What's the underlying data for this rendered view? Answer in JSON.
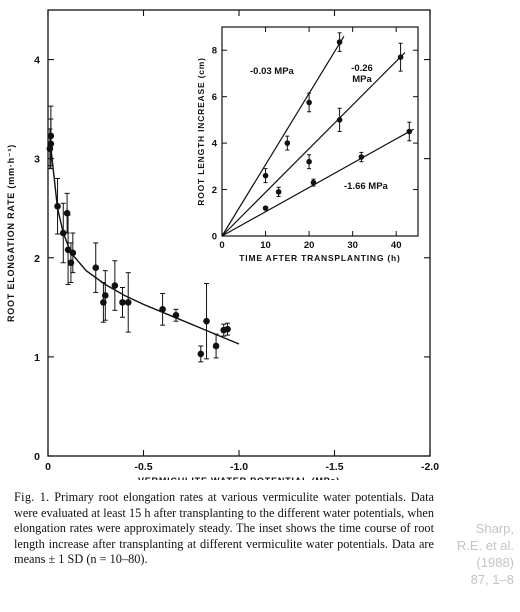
{
  "chart_data": [
    {
      "type": "scatter",
      "title": "",
      "xlabel": "VERMICULITE WATER POTENTIAL (MPa)",
      "ylabel": "ROOT ELONGATION RATE (mm·h⁻¹)",
      "xlim": [
        0,
        -2.0
      ],
      "ylim": [
        0,
        4.5
      ],
      "xticks": [
        0,
        -0.5,
        -1.0,
        -1.5,
        -2.0
      ],
      "xtick_labels": [
        "0",
        "-0.5",
        "-1.0",
        "-1.5",
        "-2.0"
      ],
      "yticks": [
        0,
        1,
        2,
        3,
        4
      ],
      "ytick_labels": [
        "0",
        "1",
        "2",
        "3",
        "4"
      ],
      "grid": false,
      "points": [
        {
          "x": -0.01,
          "y": 3.1,
          "err": 0.2
        },
        {
          "x": -0.015,
          "y": 3.23,
          "err": 0.3
        },
        {
          "x": -0.015,
          "y": 3.15,
          "err": 0.25
        },
        {
          "x": -0.05,
          "y": 2.52,
          "err": 0.28
        },
        {
          "x": -0.08,
          "y": 2.25,
          "err": 0.3
        },
        {
          "x": -0.1,
          "y": 2.45,
          "err": 0.2
        },
        {
          "x": -0.105,
          "y": 2.08,
          "err": 0.35
        },
        {
          "x": -0.12,
          "y": 1.95,
          "err": 0.2
        },
        {
          "x": -0.13,
          "y": 2.05,
          "err": 0.2
        },
        {
          "x": -0.25,
          "y": 1.9,
          "err": 0.25
        },
        {
          "x": -0.29,
          "y": 1.55,
          "err": 0.2
        },
        {
          "x": -0.3,
          "y": 1.62,
          "err": 0.25
        },
        {
          "x": -0.35,
          "y": 1.72,
          "err": 0.25
        },
        {
          "x": -0.39,
          "y": 1.55,
          "err": 0.15
        },
        {
          "x": -0.42,
          "y": 1.55,
          "err": 0.3
        },
        {
          "x": -0.6,
          "y": 1.48,
          "err": 0.16
        },
        {
          "x": -0.67,
          "y": 1.42,
          "err": 0.06
        },
        {
          "x": -0.8,
          "y": 1.03,
          "err": 0.08
        },
        {
          "x": -0.83,
          "y": 1.36,
          "err": 0.38
        },
        {
          "x": -0.88,
          "y": 1.11,
          "err": 0.12
        },
        {
          "x": -0.92,
          "y": 1.27,
          "err": 0.06
        },
        {
          "x": -0.94,
          "y": 1.28,
          "err": 0.06
        }
      ],
      "fit_curve": [
        {
          "x": -0.01,
          "y": 3.2
        },
        {
          "x": -0.03,
          "y": 2.85
        },
        {
          "x": -0.05,
          "y": 2.5
        },
        {
          "x": -0.08,
          "y": 2.25
        },
        {
          "x": -0.12,
          "y": 2.05
        },
        {
          "x": -0.2,
          "y": 1.87
        },
        {
          "x": -0.3,
          "y": 1.73
        },
        {
          "x": -0.4,
          "y": 1.62
        },
        {
          "x": -0.5,
          "y": 1.53
        },
        {
          "x": -0.6,
          "y": 1.45
        },
        {
          "x": -0.7,
          "y": 1.37
        },
        {
          "x": -0.8,
          "y": 1.29
        },
        {
          "x": -0.9,
          "y": 1.21
        },
        {
          "x": -1.0,
          "y": 1.13
        }
      ]
    },
    {
      "type": "line",
      "title": "",
      "xlabel": "TIME AFTER TRANSPLANTING (h)",
      "ylabel": "ROOT LENGTH INCREASE (cm)",
      "xlim": [
        0,
        45
      ],
      "ylim": [
        0,
        9
      ],
      "xticks": [
        0,
        10,
        20,
        30,
        40
      ],
      "xtick_labels": [
        "0",
        "10",
        "20",
        "30",
        "40"
      ],
      "yticks": [
        0,
        2,
        4,
        6,
        8
      ],
      "ytick_labels": [
        "0",
        "2",
        "4",
        "6",
        "8"
      ],
      "grid": false,
      "series": [
        {
          "name": "-0.03 MPa",
          "points": [
            {
              "x": 10,
              "y": 2.6,
              "err": 0.3
            },
            {
              "x": 15,
              "y": 4.0,
              "err": 0.3
            },
            {
              "x": 20,
              "y": 5.75,
              "err": 0.4
            },
            {
              "x": 27,
              "y": 8.35,
              "err": 0.4
            }
          ],
          "line": [
            [
              0,
              0
            ],
            [
              28,
              8.6
            ]
          ]
        },
        {
          "name": "-0.26 MPa",
          "points": [
            {
              "x": 13,
              "y": 1.9,
              "err": 0.2
            },
            {
              "x": 20,
              "y": 3.2,
              "err": 0.3
            },
            {
              "x": 27,
              "y": 5.0,
              "err": 0.5
            },
            {
              "x": 41,
              "y": 7.7,
              "err": 0.6
            }
          ],
          "line": [
            [
              0,
              0
            ],
            [
              42,
              7.9
            ]
          ]
        },
        {
          "name": "-1.66 MPa",
          "points": [
            {
              "x": 10,
              "y": 1.2,
              "err": 0.05
            },
            {
              "x": 21,
              "y": 2.3,
              "err": 0.15
            },
            {
              "x": 32,
              "y": 3.4,
              "err": 0.2
            },
            {
              "x": 43,
              "y": 4.5,
              "err": 0.4
            }
          ],
          "line": [
            [
              0,
              0
            ],
            [
              44,
              4.6
            ]
          ]
        }
      ]
    }
  ],
  "caption": {
    "fig_label": "Fig. 1.",
    "text": "Primary root elongation rates at various vermiculite water potentials. Data were evaluated at least 15 h after transplanting to the different water potentials, when elongation rates were approximately steady. The inset shows the time course of root length increase after transplanting at different vermiculite water potentials. Data are means ± 1 SD (n = 10–80)."
  },
  "citation": {
    "line1": "Sharp,",
    "line2": "R.E. et al.",
    "line3": "(1988)",
    "line4": "87, 1–8"
  },
  "colors": {
    "ink": "#111111",
    "citation": "#c4c4c4",
    "background": "#ffffff"
  }
}
